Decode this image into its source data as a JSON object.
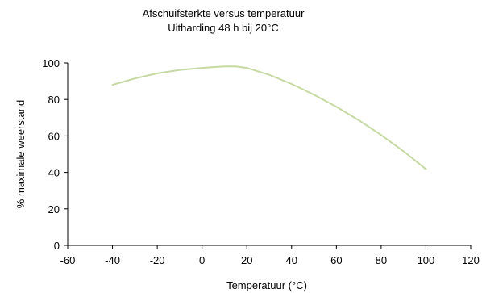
{
  "chart_data": {
    "type": "line",
    "title": "Afschuifsterkte versus temperatuur",
    "subtitle": "Uitharding 48 h bij 20°C",
    "xlabel": "Temperatuur (°C)",
    "ylabel": "% maximale weerstand",
    "xlim": [
      -60,
      120
    ],
    "ylim": [
      0,
      100
    ],
    "xticks": [
      "-60",
      "-40",
      "-20",
      "0",
      "20",
      "40",
      "60",
      "80",
      "100",
      "120"
    ],
    "yticks": [
      "0",
      "20",
      "40",
      "60",
      "80",
      "100"
    ],
    "grid": false,
    "series": [
      {
        "color": "#c6d9a3",
        "x": [
          -40,
          -30,
          -20,
          -10,
          0,
          10,
          15,
          20,
          30,
          40,
          50,
          60,
          70,
          80,
          90,
          100
        ],
        "y": [
          88,
          91.5,
          94.3,
          96.2,
          97.3,
          98.1,
          98.1,
          97.3,
          93.5,
          88.5,
          82.6,
          76,
          68.6,
          60.5,
          51.6,
          41.8
        ]
      }
    ]
  }
}
